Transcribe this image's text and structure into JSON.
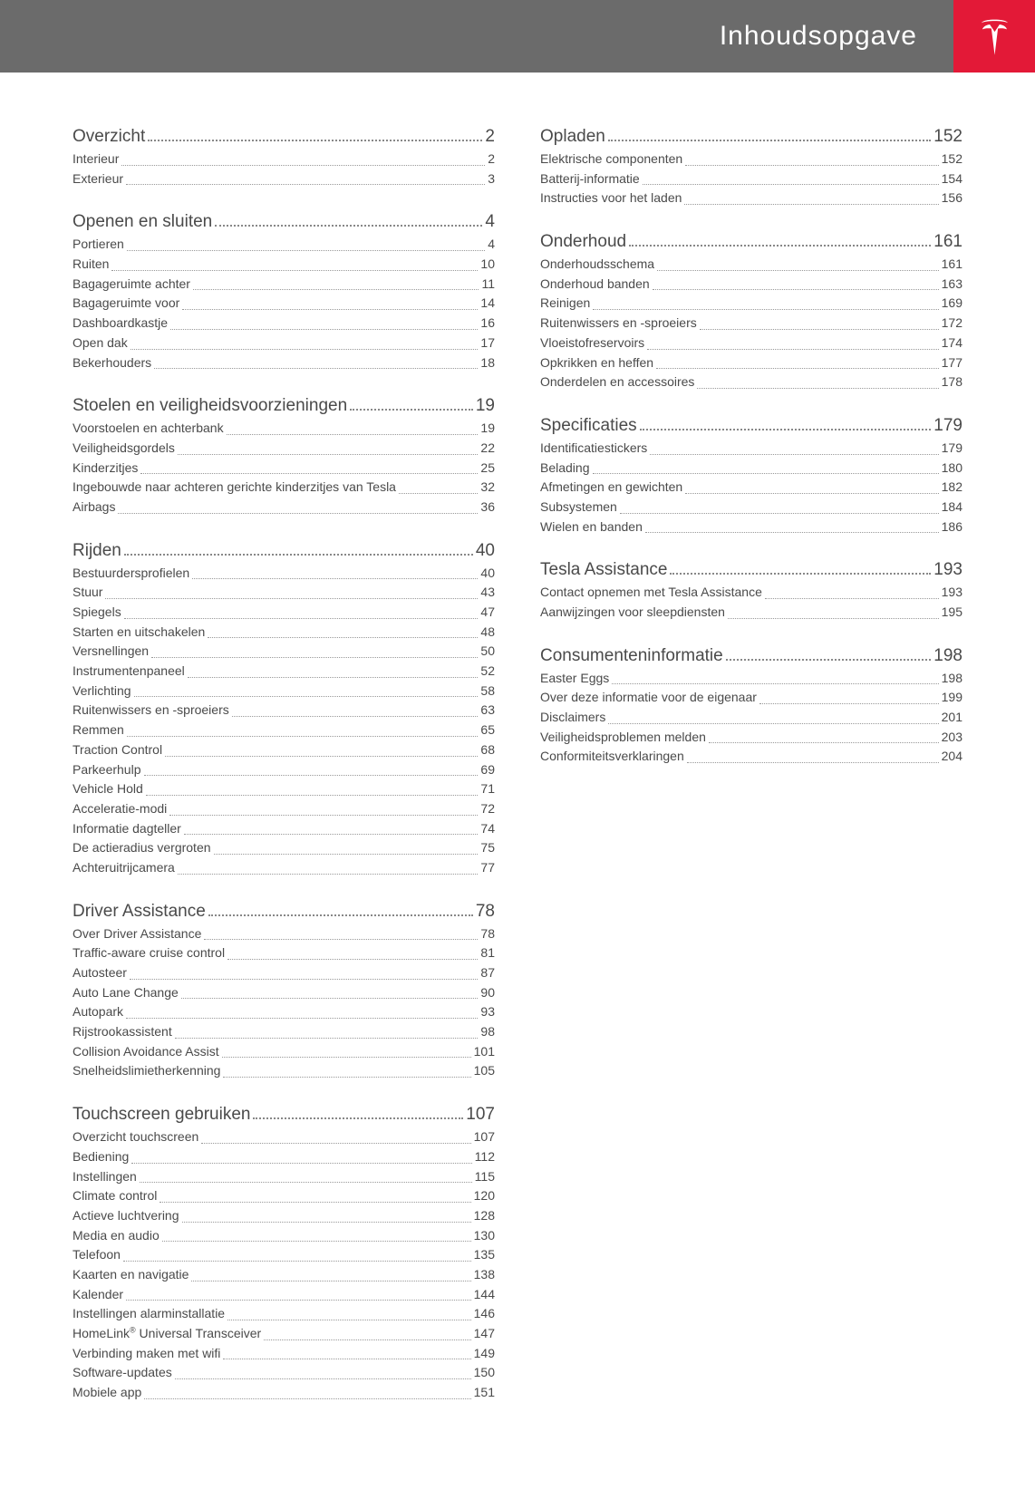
{
  "header": {
    "title": "Inhoudsopgave"
  },
  "columns": [
    {
      "sections": [
        {
          "title": "Overzicht",
          "page": "2",
          "entries": [
            {
              "title": "Interieur",
              "page": "2"
            },
            {
              "title": "Exterieur",
              "page": "3"
            }
          ]
        },
        {
          "title": "Openen en sluiten",
          "page": "4",
          "entries": [
            {
              "title": "Portieren",
              "page": "4"
            },
            {
              "title": "Ruiten",
              "page": "10"
            },
            {
              "title": "Bagageruimte achter",
              "page": "11"
            },
            {
              "title": "Bagageruimte voor",
              "page": "14"
            },
            {
              "title": "Dashboardkastje",
              "page": "16"
            },
            {
              "title": "Open dak",
              "page": "17"
            },
            {
              "title": "Bekerhouders",
              "page": "18"
            }
          ]
        },
        {
          "title": "Stoelen en veiligheidsvoorzieningen",
          "page": "19",
          "entries": [
            {
              "title": "Voorstoelen en achterbank",
              "page": "19"
            },
            {
              "title": "Veiligheidsgordels",
              "page": "22"
            },
            {
              "title": "Kinderzitjes",
              "page": "25"
            },
            {
              "title": "Ingebouwde naar achteren gerichte kinderzitjes van Tesla",
              "page": "32"
            },
            {
              "title": "Airbags",
              "page": "36"
            }
          ]
        },
        {
          "title": "Rijden",
          "page": "40",
          "entries": [
            {
              "title": "Bestuurdersprofielen",
              "page": "40"
            },
            {
              "title": "Stuur",
              "page": "43"
            },
            {
              "title": "Spiegels",
              "page": "47"
            },
            {
              "title": "Starten en uitschakelen",
              "page": "48"
            },
            {
              "title": "Versnellingen",
              "page": "50"
            },
            {
              "title": "Instrumentenpaneel",
              "page": "52"
            },
            {
              "title": "Verlichting",
              "page": "58"
            },
            {
              "title": "Ruitenwissers en -sproeiers",
              "page": "63"
            },
            {
              "title": "Remmen",
              "page": "65"
            },
            {
              "title": "Traction Control",
              "page": "68"
            },
            {
              "title": "Parkeerhulp",
              "page": "69"
            },
            {
              "title": "Vehicle Hold",
              "page": "71"
            },
            {
              "title": "Acceleratie-modi",
              "page": "72"
            },
            {
              "title": "Informatie dagteller",
              "page": "74"
            },
            {
              "title": "De actieradius vergroten",
              "page": "75"
            },
            {
              "title": "Achteruitrijcamera",
              "page": "77"
            }
          ]
        },
        {
          "title": "Driver Assistance",
          "page": "78",
          "entries": [
            {
              "title": "Over Driver Assistance",
              "page": "78"
            },
            {
              "title": "Traffic-aware cruise control",
              "page": "81"
            },
            {
              "title": "Autosteer",
              "page": "87"
            },
            {
              "title": "Auto Lane Change",
              "page": "90"
            },
            {
              "title": "Autopark",
              "page": "93"
            },
            {
              "title": "Rijstrookassistent",
              "page": "98"
            },
            {
              "title": "Collision Avoidance Assist",
              "page": "101"
            },
            {
              "title": "Snelheidslimietherkenning",
              "page": "105"
            }
          ]
        },
        {
          "title": "Touchscreen gebruiken",
          "page": "107",
          "entries": [
            {
              "title": "Overzicht touchscreen",
              "page": "107"
            },
            {
              "title": "Bediening",
              "page": "112"
            },
            {
              "title": "Instellingen",
              "page": "115"
            },
            {
              "title": "Climate control",
              "page": "120"
            },
            {
              "title": "Actieve luchtvering",
              "page": "128"
            },
            {
              "title": "Media en audio",
              "page": "130"
            },
            {
              "title": "Telefoon",
              "page": "135"
            },
            {
              "title": "Kaarten en navigatie",
              "page": "138"
            },
            {
              "title": "Kalender",
              "page": "144"
            },
            {
              "title": "Instellingen alarminstallatie",
              "page": "146"
            },
            {
              "title": "HomeLink® Universal Transceiver",
              "page": "147",
              "hasSup": true
            },
            {
              "title": "Verbinding maken met wifi",
              "page": "149"
            },
            {
              "title": "Software-updates",
              "page": "150"
            },
            {
              "title": "Mobiele app",
              "page": "151"
            }
          ]
        }
      ]
    },
    {
      "sections": [
        {
          "title": "Opladen",
          "page": "152",
          "entries": [
            {
              "title": "Elektrische componenten",
              "page": "152"
            },
            {
              "title": "Batterij-informatie",
              "page": "154"
            },
            {
              "title": "Instructies voor het laden",
              "page": "156"
            }
          ]
        },
        {
          "title": "Onderhoud",
          "page": "161",
          "entries": [
            {
              "title": "Onderhoudsschema",
              "page": "161"
            },
            {
              "title": "Onderhoud banden",
              "page": "163"
            },
            {
              "title": "Reinigen",
              "page": "169"
            },
            {
              "title": "Ruitenwissers en -sproeiers",
              "page": "172"
            },
            {
              "title": "Vloeistofreservoirs",
              "page": "174"
            },
            {
              "title": "Opkrikken en heffen",
              "page": "177"
            },
            {
              "title": "Onderdelen en accessoires",
              "page": "178"
            }
          ]
        },
        {
          "title": "Specificaties",
          "page": "179",
          "entries": [
            {
              "title": "Identificatiestickers",
              "page": "179"
            },
            {
              "title": "Belading",
              "page": "180"
            },
            {
              "title": "Afmetingen en gewichten",
              "page": "182"
            },
            {
              "title": "Subsystemen",
              "page": "184"
            },
            {
              "title": "Wielen en banden",
              "page": "186"
            }
          ]
        },
        {
          "title": "Tesla Assistance",
          "page": "193",
          "entries": [
            {
              "title": "Contact opnemen met Tesla Assistance",
              "page": "193"
            },
            {
              "title": "Aanwijzingen voor sleepdiensten",
              "page": "195"
            }
          ]
        },
        {
          "title": "Consumenteninformatie",
          "page": "198",
          "entries": [
            {
              "title": "Easter Eggs",
              "page": "198"
            },
            {
              "title": "Over deze informatie voor de eigenaar",
              "page": "199"
            },
            {
              "title": "Disclaimers",
              "page": "201"
            },
            {
              "title": "Veiligheidsproblemen melden",
              "page": "203"
            },
            {
              "title": "Conformiteitsverklaringen",
              "page": "204"
            }
          ]
        }
      ]
    }
  ]
}
